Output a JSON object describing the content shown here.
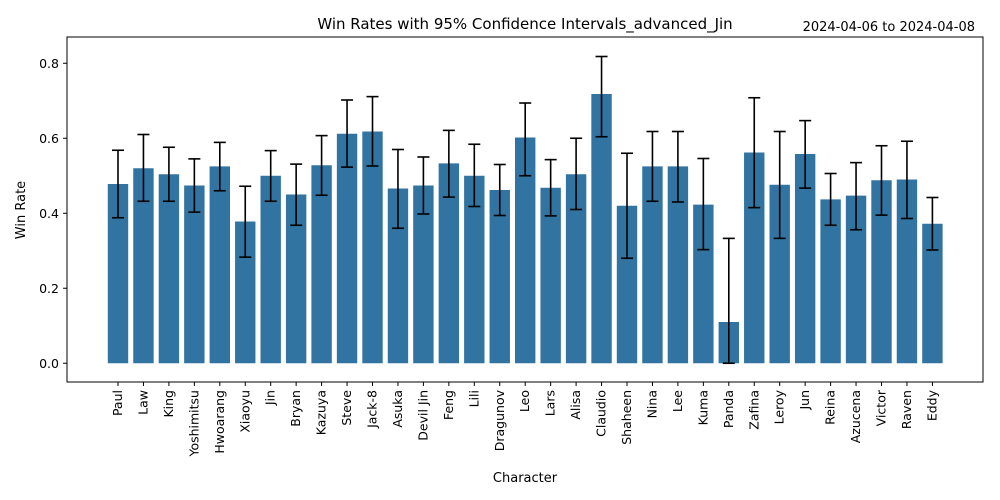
{
  "chart_data": {
    "type": "bar",
    "title": "Win Rates with 95% Confidence Intervals_advanced_Jin",
    "date_range": "2024-04-06 to 2024-04-08",
    "xlabel": "Character",
    "ylabel": "Win Rate",
    "ylim": [
      -0.05,
      0.87
    ],
    "yticks": [
      "0.0",
      "0.2",
      "0.4",
      "0.6",
      "0.8"
    ],
    "grid": false,
    "bar_color": "#3274a1",
    "categories": [
      "Paul",
      "Law",
      "King",
      "Yoshimitsu",
      "Hwoarang",
      "Xiaoyu",
      "Jin",
      "Bryan",
      "Kazuya",
      "Steve",
      "Jack-8",
      "Asuka",
      "Devil Jin",
      "Feng",
      "Lili",
      "Dragunov",
      "Leo",
      "Lars",
      "Alisa",
      "Claudio",
      "Shaheen",
      "Nina",
      "Lee",
      "Kuma",
      "Panda",
      "Zafina",
      "Leroy",
      "Jun",
      "Reina",
      "Azucena",
      "Victor",
      "Raven",
      "Eddy"
    ],
    "values": [
      0.478,
      0.52,
      0.504,
      0.474,
      0.525,
      0.378,
      0.5,
      0.45,
      0.528,
      0.612,
      0.618,
      0.466,
      0.474,
      0.533,
      0.5,
      0.462,
      0.602,
      0.468,
      0.504,
      0.718,
      0.42,
      0.525,
      0.525,
      0.423,
      0.11,
      0.562,
      0.476,
      0.558,
      0.437,
      0.447,
      0.488,
      0.49,
      0.372
    ],
    "ci_lower": [
      0.388,
      0.432,
      0.432,
      0.403,
      0.46,
      0.283,
      0.432,
      0.368,
      0.448,
      0.523,
      0.526,
      0.36,
      0.398,
      0.443,
      0.418,
      0.394,
      0.5,
      0.393,
      0.41,
      0.604,
      0.28,
      0.432,
      0.43,
      0.303,
      0.0,
      0.415,
      0.333,
      0.467,
      0.368,
      0.356,
      0.395,
      0.386,
      0.302
    ],
    "ci_upper": [
      0.568,
      0.61,
      0.576,
      0.545,
      0.589,
      0.472,
      0.567,
      0.531,
      0.607,
      0.702,
      0.711,
      0.57,
      0.55,
      0.621,
      0.584,
      0.53,
      0.694,
      0.543,
      0.6,
      0.818,
      0.56,
      0.618,
      0.618,
      0.546,
      0.333,
      0.708,
      0.618,
      0.647,
      0.506,
      0.535,
      0.58,
      0.592,
      0.442
    ]
  }
}
